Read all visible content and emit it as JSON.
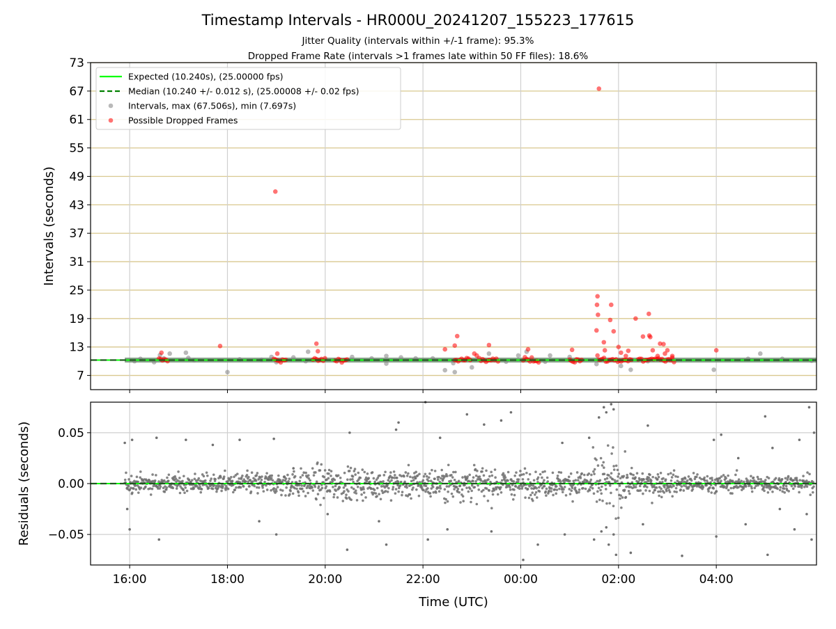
{
  "figure": {
    "title": "Timestamp Intervals - HR000U_20241207_155223_177615",
    "subtitle_1": "Jitter Quality (intervals within +/-1 frame): 95.3%",
    "subtitle_2": "Dropped Frame Rate (intervals >1 frames late within 50 FF files): 18.6%"
  },
  "chart_data": [
    {
      "type": "scatter",
      "panel": "top",
      "ylabel": "Intervals (seconds)",
      "ylim": [
        4,
        73
      ],
      "yticks": [
        7,
        13,
        19,
        25,
        31,
        37,
        43,
        49,
        55,
        61,
        67,
        73
      ],
      "grid": {
        "horizontal": true,
        "vertical": true
      },
      "legend_position": "top-left",
      "legend": [
        {
          "key": "expected",
          "label": "Expected (10.240s), (25.00000 fps)",
          "color": "#00ff00",
          "style": "solid-line"
        },
        {
          "key": "median",
          "label": "Median (10.240 +/- 0.012 s), (25.00008 +/- 0.02 fps)",
          "color": "#008000",
          "style": "dashed-line"
        },
        {
          "key": "intervals",
          "label": "Intervals, max (67.506s), min (7.697s)",
          "color": "#808080",
          "style": "marker"
        },
        {
          "key": "dropped",
          "label": "Possible Dropped Frames",
          "color": "#ff0000",
          "style": "marker"
        }
      ],
      "expected_value": 10.24,
      "median_value": 10.24,
      "x_unit": "hours since 16:00 UTC (values past 8.0 are after midnight)",
      "series": [
        {
          "name": "Intervals, max (67.506s), min (7.697s)",
          "color": "#808080",
          "points": [
            [
              0.1,
              10.0
            ],
            [
              0.22,
              10.5
            ],
            [
              0.5,
              9.8
            ],
            [
              0.62,
              11.3
            ],
            [
              0.7,
              10.6
            ],
            [
              0.82,
              11.6
            ],
            [
              1.2,
              10.7
            ],
            [
              1.15,
              11.8
            ],
            [
              1.32,
              10.2
            ],
            [
              2.0,
              7.7
            ],
            [
              2.25,
              10.4
            ],
            [
              2.7,
              10.3
            ],
            [
              2.9,
              10.9
            ],
            [
              3.0,
              9.8
            ],
            [
              3.35,
              10.8
            ],
            [
              3.65,
              12.0
            ],
            [
              3.6,
              10.0
            ],
            [
              4.55,
              10.9
            ],
            [
              4.95,
              10.6
            ],
            [
              5.25,
              11.1
            ],
            [
              5.25,
              9.5
            ],
            [
              5.55,
              10.8
            ],
            [
              5.85,
              10.6
            ],
            [
              6.2,
              10.6
            ],
            [
              6.45,
              8.1
            ],
            [
              6.65,
              7.7
            ],
            [
              6.62,
              9.6
            ],
            [
              7.0,
              8.7
            ],
            [
              7.35,
              11.6
            ],
            [
              7.7,
              9.9
            ],
            [
              7.95,
              11.2
            ],
            [
              8.12,
              12.0
            ],
            [
              8.5,
              9.9
            ],
            [
              8.6,
              11.2
            ],
            [
              9.0,
              10.9
            ],
            [
              9.55,
              9.4
            ],
            [
              10.05,
              9.0
            ],
            [
              10.25,
              8.2
            ],
            [
              10.6,
              10.0
            ],
            [
              11.95,
              8.2
            ],
            [
              12.65,
              10.5
            ],
            [
              12.9,
              11.6
            ],
            [
              13.35,
              10.5
            ],
            [
              13.95,
              10.1
            ]
          ]
        },
        {
          "name": "Possible Dropped Frames",
          "color": "#ff0000",
          "points": [
            [
              0.65,
              11.8
            ],
            [
              1.85,
              13.2
            ],
            [
              2.98,
              45.8
            ],
            [
              3.02,
              11.6
            ],
            [
              3.82,
              13.7
            ],
            [
              3.85,
              12.1
            ],
            [
              6.45,
              12.5
            ],
            [
              6.65,
              13.3
            ],
            [
              6.7,
              15.3
            ],
            [
              7.05,
              11.6
            ],
            [
              7.1,
              11.2
            ],
            [
              7.35,
              13.4
            ],
            [
              8.15,
              12.5
            ],
            [
              9.05,
              12.4
            ],
            [
              9.6,
              67.5
            ],
            [
              9.57,
              23.7
            ],
            [
              9.56,
              21.9
            ],
            [
              9.58,
              19.8
            ],
            [
              9.55,
              16.5
            ],
            [
              9.57,
              11.2
            ],
            [
              9.7,
              14.0
            ],
            [
              9.72,
              12.3
            ],
            [
              9.85,
              21.9
            ],
            [
              9.83,
              18.7
            ],
            [
              9.9,
              16.3
            ],
            [
              10.0,
              13.0
            ],
            [
              10.05,
              11.8
            ],
            [
              10.15,
              11.1
            ],
            [
              10.2,
              12.2
            ],
            [
              10.35,
              19.0
            ],
            [
              10.5,
              15.2
            ],
            [
              10.62,
              20.0
            ],
            [
              10.63,
              15.4
            ],
            [
              10.65,
              15.1
            ],
            [
              10.7,
              12.3
            ],
            [
              10.8,
              11.1
            ],
            [
              10.85,
              13.7
            ],
            [
              10.92,
              13.6
            ],
            [
              10.95,
              11.6
            ],
            [
              11.0,
              12.3
            ],
            [
              11.1,
              11.1
            ],
            [
              12.0,
              12.3
            ]
          ],
          "clusters": [
            [
              0.6,
              0.8
            ],
            [
              2.95,
              3.2
            ],
            [
              3.75,
              4.0
            ],
            [
              4.2,
              4.45
            ],
            [
              6.65,
              7.0
            ],
            [
              7.15,
              7.55
            ],
            [
              8.05,
              8.4
            ],
            [
              9.0,
              9.25
            ],
            [
              9.6,
              10.3
            ],
            [
              10.4,
              11.15
            ]
          ]
        }
      ]
    },
    {
      "type": "scatter",
      "panel": "bottom",
      "xlabel": "Time (UTC)",
      "ylabel": "Residuals (seconds)",
      "ylim": [
        -0.08,
        0.08
      ],
      "yticks": [
        -0.05,
        0.0,
        0.05
      ],
      "ytick_labels": [
        "−0.05",
        "0.00",
        "0.05"
      ],
      "xlim": [
        -0.8,
        14.05
      ],
      "xticks": [
        0,
        2,
        4,
        6,
        8,
        10,
        12
      ],
      "xtick_labels": [
        "16:00",
        "18:00",
        "20:00",
        "22:00",
        "00:00",
        "02:00",
        "04:00"
      ],
      "x_unit": "hours since 16:00 UTC (values past 8.0 are after midnight)",
      "grid": {
        "horizontal": true,
        "vertical": true
      },
      "zero_line_color": "#00ff00",
      "series": [
        {
          "name": "Residuals",
          "color": "#808080",
          "spread": [
            [
              -0.1,
              0.006
            ],
            [
              1.0,
              0.006
            ],
            [
              3.0,
              0.008
            ],
            [
              4.0,
              0.012
            ],
            [
              5.0,
              0.01
            ],
            [
              6.0,
              0.01
            ],
            [
              7.0,
              0.012
            ],
            [
              8.0,
              0.009
            ],
            [
              9.0,
              0.008
            ],
            [
              9.6,
              0.02
            ],
            [
              9.9,
              0.02
            ],
            [
              10.3,
              0.01
            ],
            [
              11.0,
              0.008
            ],
            [
              12.0,
              0.006
            ],
            [
              14.0,
              0.006
            ]
          ],
          "outliers": [
            [
              -0.1,
              0.04
            ],
            [
              0.05,
              0.043
            ],
            [
              -0.05,
              -0.025
            ],
            [
              0.0,
              -0.045
            ],
            [
              0.55,
              0.045
            ],
            [
              0.6,
              -0.055
            ],
            [
              1.15,
              0.043
            ],
            [
              1.7,
              0.038
            ],
            [
              2.25,
              0.043
            ],
            [
              2.95,
              0.044
            ],
            [
              3.0,
              -0.05
            ],
            [
              2.65,
              -0.037
            ],
            [
              3.35,
              0.015
            ],
            [
              4.05,
              -0.03
            ],
            [
              4.5,
              0.05
            ],
            [
              4.45,
              -0.065
            ],
            [
              5.1,
              -0.037
            ],
            [
              5.5,
              0.06
            ],
            [
              5.45,
              0.053
            ],
            [
              5.25,
              -0.06
            ],
            [
              6.05,
              0.08
            ],
            [
              6.35,
              0.045
            ],
            [
              6.5,
              -0.045
            ],
            [
              6.1,
              -0.055
            ],
            [
              6.9,
              0.068
            ],
            [
              7.25,
              0.058
            ],
            [
              7.8,
              0.07
            ],
            [
              7.4,
              -0.047
            ],
            [
              7.6,
              0.062
            ],
            [
              8.05,
              -0.075
            ],
            [
              8.35,
              -0.06
            ],
            [
              8.9,
              -0.05
            ],
            [
              8.85,
              0.04
            ],
            [
              9.4,
              0.045
            ],
            [
              9.5,
              -0.055
            ],
            [
              9.6,
              0.065
            ],
            [
              9.7,
              0.075
            ],
            [
              9.75,
              0.07
            ],
            [
              9.85,
              0.078
            ],
            [
              9.9,
              0.073
            ],
            [
              9.95,
              -0.07
            ],
            [
              9.8,
              -0.06
            ],
            [
              9.65,
              -0.047
            ],
            [
              9.75,
              -0.043
            ],
            [
              9.9,
              -0.05
            ],
            [
              10.25,
              -0.068
            ],
            [
              10.6,
              0.057
            ],
            [
              10.5,
              -0.04
            ],
            [
              11.3,
              -0.071
            ],
            [
              11.95,
              0.043
            ],
            [
              12.1,
              0.048
            ],
            [
              12.0,
              -0.052
            ],
            [
              12.45,
              0.025
            ],
            [
              12.6,
              -0.04
            ],
            [
              13.0,
              0.066
            ],
            [
              13.05,
              -0.07
            ],
            [
              13.15,
              0.035
            ],
            [
              13.3,
              -0.025
            ],
            [
              13.7,
              0.043
            ],
            [
              13.6,
              -0.045
            ],
            [
              13.85,
              -0.03
            ],
            [
              13.9,
              0.075
            ],
            [
              13.95,
              -0.055
            ],
            [
              14.0,
              0.05
            ]
          ]
        }
      ]
    }
  ]
}
